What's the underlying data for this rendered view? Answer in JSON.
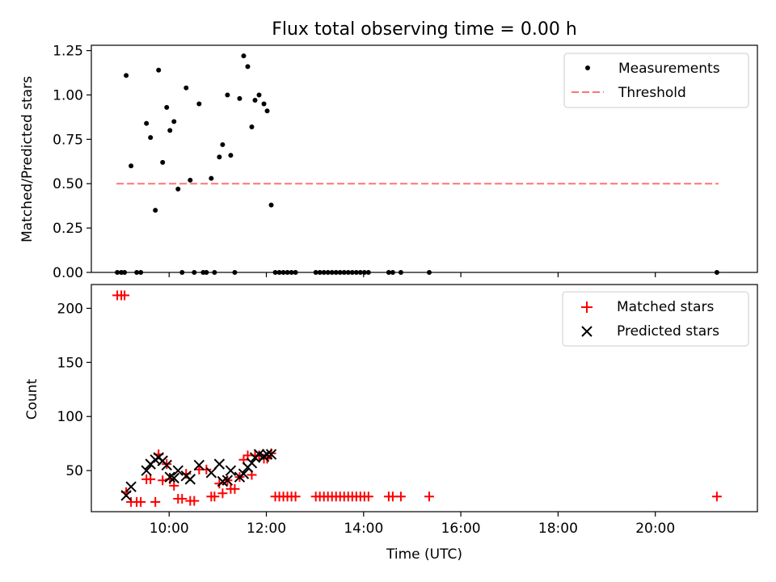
{
  "chart_data": [
    {
      "type": "scatter",
      "title": "Flux total observing time = 0.00 h",
      "xlabel": "",
      "ylabel": "Matched/Predicted stars",
      "ylim": [
        0,
        1.28
      ],
      "xlim_hours": [
        8.4,
        22.1
      ],
      "y_ticks": [
        "0.00",
        "0.25",
        "0.50",
        "0.75",
        "1.00",
        "1.25"
      ],
      "legend_position": "top-right",
      "series": [
        {
          "name": "Measurements",
          "color": "#000000",
          "marker": "dot",
          "points": [
            [
              "09:07",
              1.11
            ],
            [
              "09:13",
              0.6
            ],
            [
              "09:32",
              0.84
            ],
            [
              "09:37",
              0.76
            ],
            [
              "09:43",
              0.35
            ],
            [
              "09:47",
              1.14
            ],
            [
              "09:52",
              0.62
            ],
            [
              "09:57",
              0.93
            ],
            [
              "10:01",
              0.8
            ],
            [
              "10:06",
              0.85
            ],
            [
              "10:11",
              0.47
            ],
            [
              "10:21",
              1.04
            ],
            [
              "10:26",
              0.52
            ],
            [
              "10:37",
              0.95
            ],
            [
              "10:52",
              0.53
            ],
            [
              "11:02",
              0.65
            ],
            [
              "11:06",
              0.72
            ],
            [
              "11:12",
              1.0
            ],
            [
              "11:16",
              0.66
            ],
            [
              "11:27",
              0.98
            ],
            [
              "11:32",
              1.22
            ],
            [
              "11:37",
              1.16
            ],
            [
              "11:42",
              0.82
            ],
            [
              "11:46",
              0.97
            ],
            [
              "11:51",
              1.0
            ],
            [
              "11:57",
              0.95
            ],
            [
              "12:01",
              0.91
            ],
            [
              "12:06",
              0.38
            ],
            [
              "08:56",
              0.0
            ],
            [
              "09:01",
              0.0
            ],
            [
              "09:05",
              0.0
            ],
            [
              "09:20",
              0.0
            ],
            [
              "09:25",
              0.0
            ],
            [
              "10:16",
              0.0
            ],
            [
              "10:31",
              0.0
            ],
            [
              "10:42",
              0.0
            ],
            [
              "10:46",
              0.0
            ],
            [
              "10:56",
              0.0
            ],
            [
              "11:21",
              0.0
            ],
            [
              "12:11",
              0.0
            ],
            [
              "12:16",
              0.0
            ],
            [
              "12:21",
              0.0
            ],
            [
              "12:26",
              0.0
            ],
            [
              "12:31",
              0.0
            ],
            [
              "12:36",
              0.0
            ],
            [
              "13:01",
              0.0
            ],
            [
              "13:06",
              0.0
            ],
            [
              "13:11",
              0.0
            ],
            [
              "13:16",
              0.0
            ],
            [
              "13:21",
              0.0
            ],
            [
              "13:26",
              0.0
            ],
            [
              "13:31",
              0.0
            ],
            [
              "13:36",
              0.0
            ],
            [
              "13:41",
              0.0
            ],
            [
              "13:46",
              0.0
            ],
            [
              "13:51",
              0.0
            ],
            [
              "13:56",
              0.0
            ],
            [
              "14:01",
              0.0
            ],
            [
              "14:06",
              0.0
            ],
            [
              "14:31",
              0.0
            ],
            [
              "14:36",
              0.0
            ],
            [
              "14:46",
              0.0
            ],
            [
              "15:21",
              0.0
            ],
            [
              "21:16",
              0.0
            ]
          ]
        },
        {
          "name": "Threshold",
          "color": "#ff7373",
          "style": "dashed",
          "points": [
            [
              "08:55",
              0.5
            ],
            [
              "21:18",
              0.5
            ]
          ]
        }
      ]
    },
    {
      "type": "scatter",
      "title": "",
      "xlabel": "Time (UTC)",
      "ylabel": "Count",
      "ylim": [
        12,
        222
      ],
      "xlim_hours": [
        8.4,
        22.1
      ],
      "x_ticks": [
        "10:00",
        "12:00",
        "14:00",
        "16:00",
        "18:00",
        "20:00"
      ],
      "y_ticks": [
        "50",
        "100",
        "150",
        "200"
      ],
      "legend_position": "top-right",
      "series": [
        {
          "name": "Matched stars",
          "color": "#ff0000",
          "marker": "plus",
          "points": [
            [
              "08:56",
              212
            ],
            [
              "09:01",
              212
            ],
            [
              "09:05",
              212
            ],
            [
              "09:07",
              30
            ],
            [
              "09:13",
              21
            ],
            [
              "09:20",
              21
            ],
            [
              "09:25",
              21
            ],
            [
              "09:32",
              42
            ],
            [
              "09:37",
              42
            ],
            [
              "09:43",
              21
            ],
            [
              "09:47",
              65
            ],
            [
              "09:52",
              41
            ],
            [
              "09:57",
              56
            ],
            [
              "10:01",
              42
            ],
            [
              "10:06",
              36
            ],
            [
              "10:11",
              24
            ],
            [
              "10:16",
              24
            ],
            [
              "10:21",
              47
            ],
            [
              "10:26",
              22
            ],
            [
              "10:31",
              22
            ],
            [
              "10:37",
              51
            ],
            [
              "10:46",
              51
            ],
            [
              "10:52",
              26
            ],
            [
              "10:56",
              26
            ],
            [
              "11:02",
              38
            ],
            [
              "11:06",
              29
            ],
            [
              "11:12",
              41
            ],
            [
              "11:16",
              33
            ],
            [
              "11:21",
              33
            ],
            [
              "11:27",
              44
            ],
            [
              "11:32",
              60
            ],
            [
              "11:37",
              64
            ],
            [
              "11:42",
              46
            ],
            [
              "11:46",
              64
            ],
            [
              "11:51",
              64
            ],
            [
              "11:57",
              61
            ],
            [
              "12:01",
              61
            ],
            [
              "12:06",
              66
            ],
            [
              "12:11",
              26
            ],
            [
              "12:16",
              26
            ],
            [
              "12:21",
              26
            ],
            [
              "12:26",
              26
            ],
            [
              "12:31",
              26
            ],
            [
              "12:36",
              26
            ],
            [
              "13:01",
              26
            ],
            [
              "13:06",
              26
            ],
            [
              "13:11",
              26
            ],
            [
              "13:16",
              26
            ],
            [
              "13:21",
              26
            ],
            [
              "13:26",
              26
            ],
            [
              "13:31",
              26
            ],
            [
              "13:36",
              26
            ],
            [
              "13:41",
              26
            ],
            [
              "13:46",
              26
            ],
            [
              "13:51",
              26
            ],
            [
              "13:56",
              26
            ],
            [
              "14:01",
              26
            ],
            [
              "14:06",
              26
            ],
            [
              "14:31",
              26
            ],
            [
              "14:36",
              26
            ],
            [
              "14:46",
              26
            ],
            [
              "15:21",
              26
            ],
            [
              "21:16",
              26
            ]
          ]
        },
        {
          "name": "Predicted stars",
          "color": "#000000",
          "marker": "x",
          "points": [
            [
              "09:07",
              27
            ],
            [
              "09:13",
              35
            ],
            [
              "09:32",
              50
            ],
            [
              "09:37",
              56
            ],
            [
              "09:43",
              60
            ],
            [
              "09:47",
              62
            ],
            [
              "09:52",
              59
            ],
            [
              "09:57",
              55
            ],
            [
              "10:01",
              44
            ],
            [
              "10:06",
              43
            ],
            [
              "10:11",
              50
            ],
            [
              "10:21",
              45
            ],
            [
              "10:26",
              42
            ],
            [
              "10:37",
              55
            ],
            [
              "10:52",
              48
            ],
            [
              "11:02",
              56
            ],
            [
              "11:06",
              40
            ],
            [
              "11:12",
              41
            ],
            [
              "11:16",
              50
            ],
            [
              "11:27",
              44
            ],
            [
              "11:32",
              47
            ],
            [
              "11:37",
              53
            ],
            [
              "11:42",
              57
            ],
            [
              "11:46",
              62
            ],
            [
              "11:51",
              65
            ],
            [
              "11:57",
              63
            ],
            [
              "12:01",
              65
            ],
            [
              "12:06",
              65
            ]
          ]
        }
      ]
    }
  ]
}
